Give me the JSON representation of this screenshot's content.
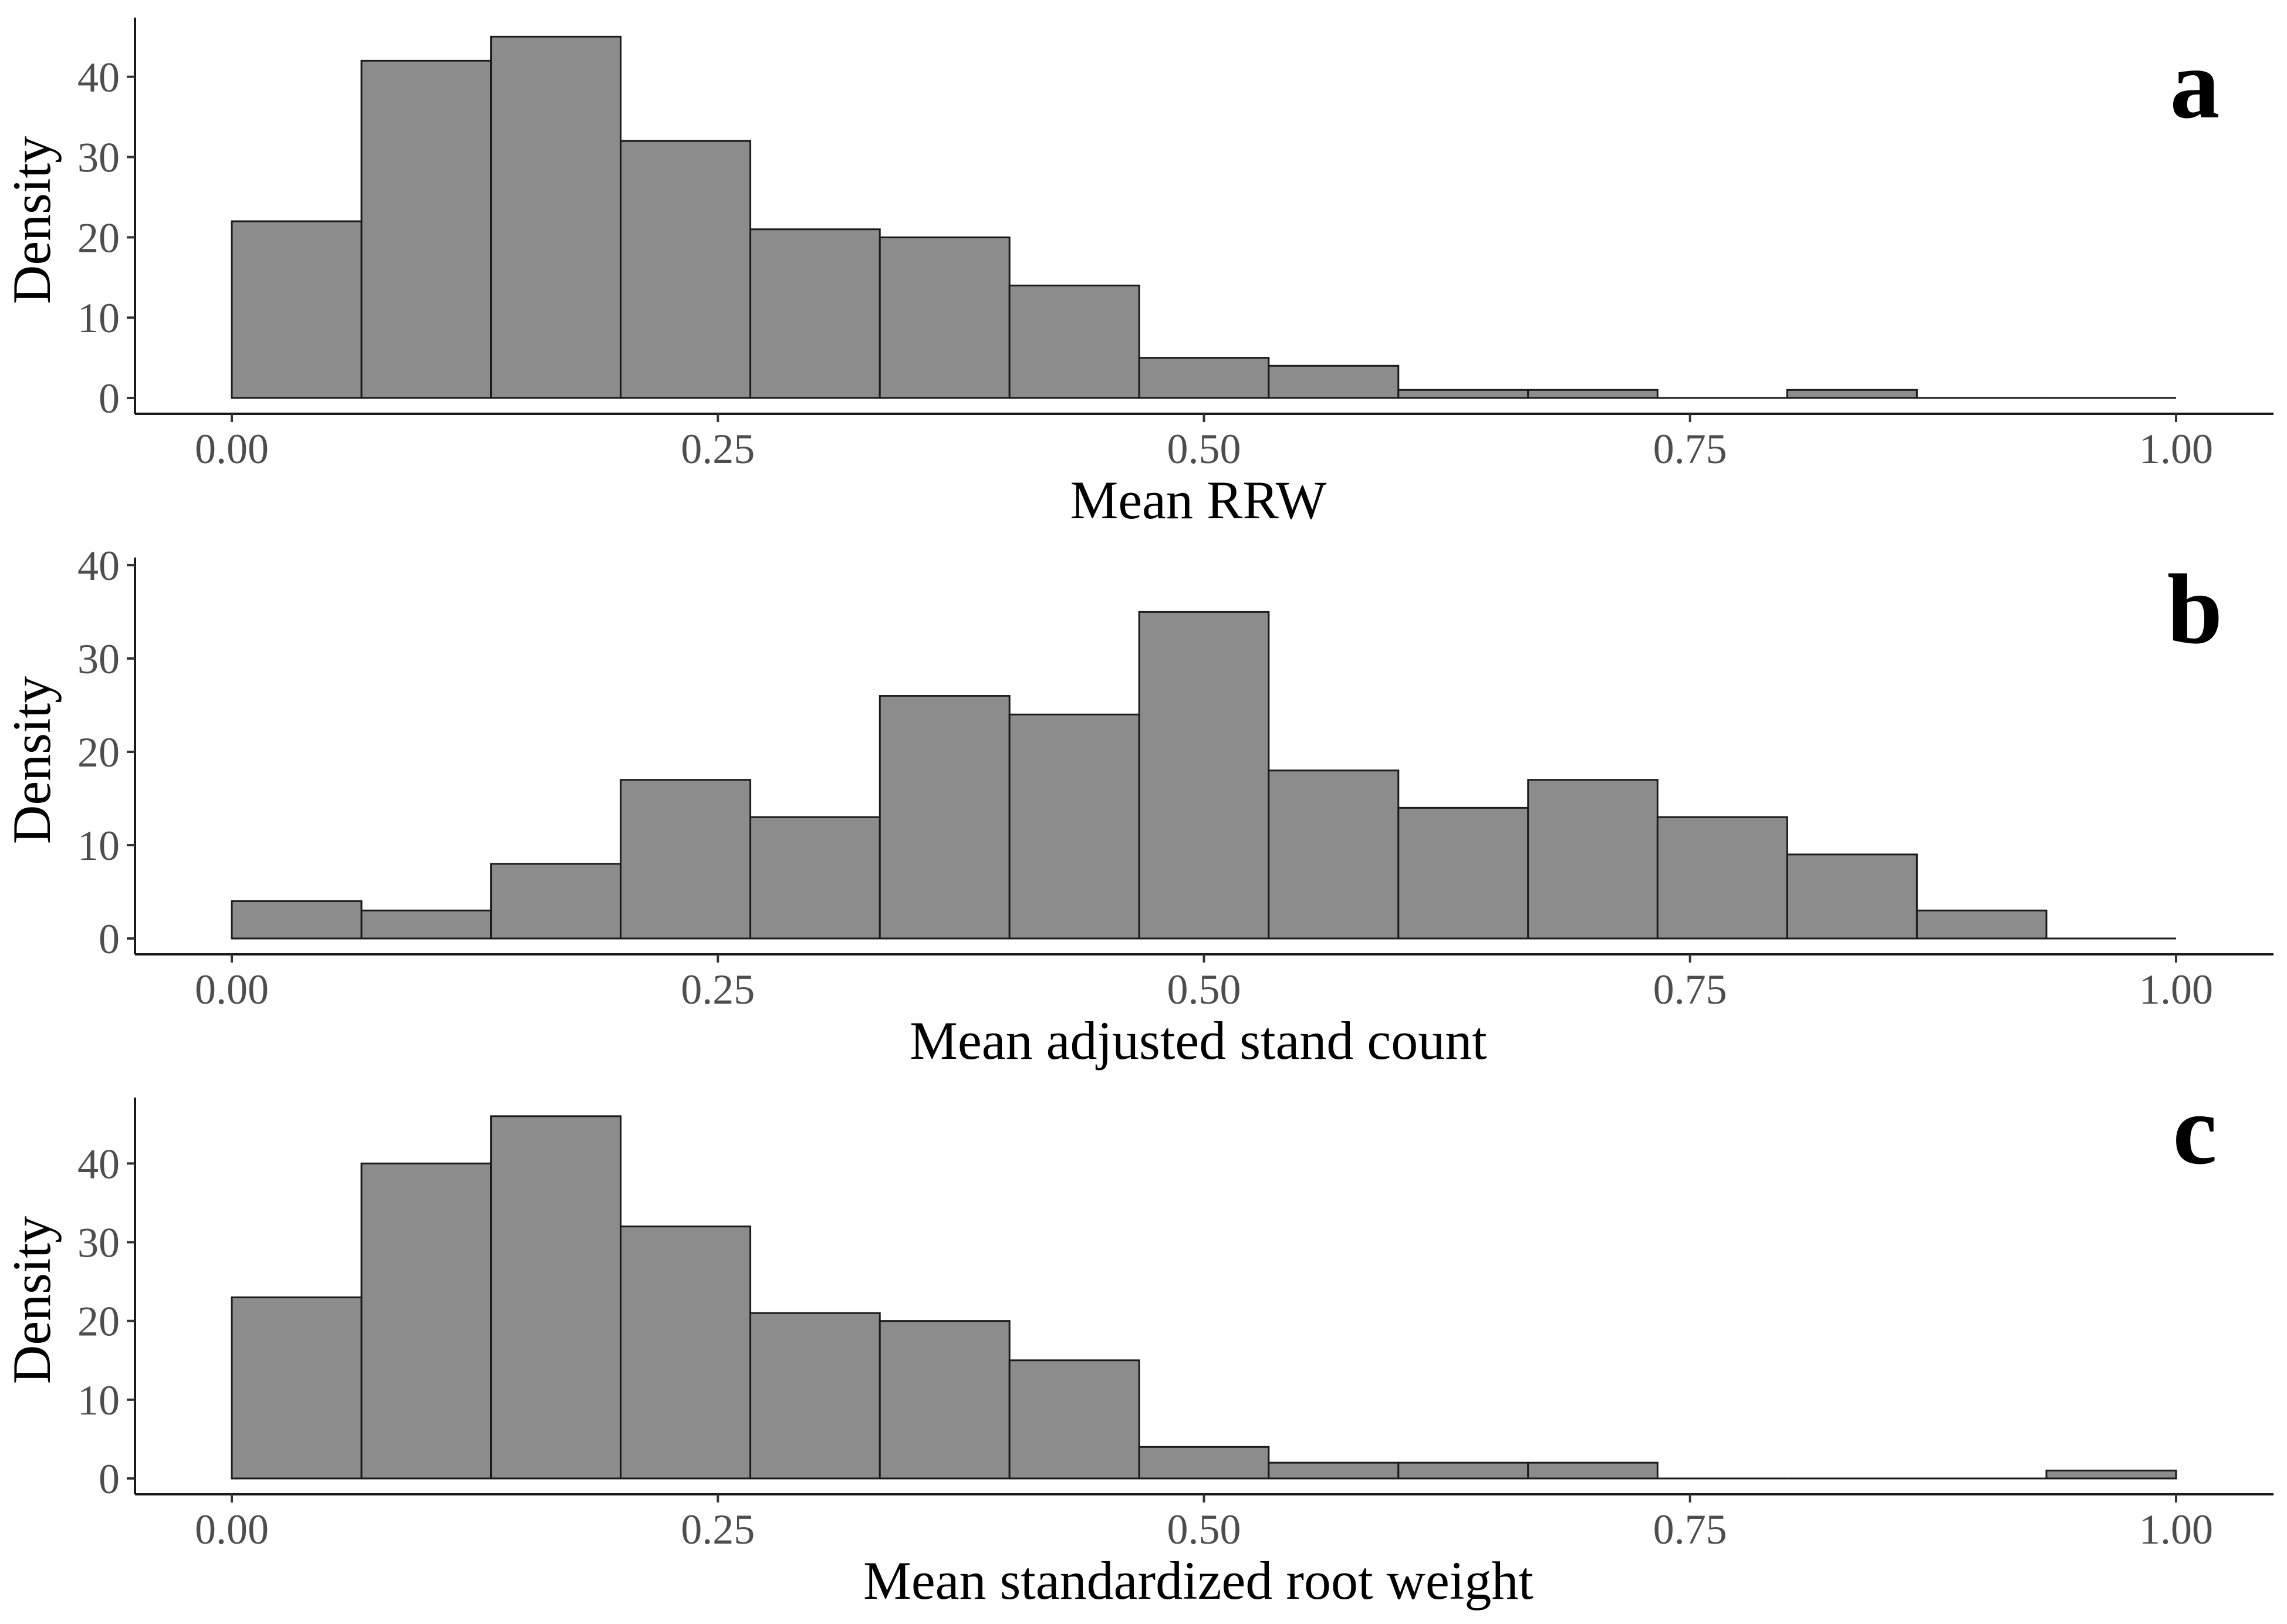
{
  "chart_data": [
    {
      "type": "bar",
      "panel_label": "a",
      "xlabel": "Mean RRW",
      "ylabel": "Density",
      "bin_edges": [
        0.0,
        0.0667,
        0.1333,
        0.2,
        0.2667,
        0.3333,
        0.4,
        0.4667,
        0.5333,
        0.6,
        0.6667,
        0.7333,
        0.8,
        0.8667,
        0.9333,
        1.0
      ],
      "values": [
        22,
        42,
        45,
        32,
        21,
        20,
        14,
        5,
        4,
        1,
        1,
        0,
        1,
        0,
        0
      ],
      "xlim": [
        0,
        1
      ],
      "ylim": [
        0,
        47
      ],
      "xticks": [
        0,
        0.25,
        0.5,
        0.75,
        1.0
      ],
      "xtick_labels": [
        "0.00",
        "0.25",
        "0.50",
        "0.75",
        "1.00"
      ],
      "yticks": [
        0,
        10,
        20,
        30,
        40
      ],
      "ytick_labels": [
        "0",
        "10",
        "20",
        "30",
        "40"
      ],
      "grid": false,
      "bar_color": "#8c8c8c",
      "bar_outline": "#1a1a1a"
    },
    {
      "type": "bar",
      "panel_label": "b",
      "xlabel": "Mean adjusted stand count",
      "ylabel": "Density",
      "bin_edges": [
        0.0,
        0.0667,
        0.1333,
        0.2,
        0.2667,
        0.3333,
        0.4,
        0.4667,
        0.5333,
        0.6,
        0.6667,
        0.7333,
        0.8,
        0.8667,
        0.9333,
        1.0
      ],
      "values": [
        4,
        3,
        8,
        17,
        13,
        26,
        24,
        35,
        18,
        14,
        17,
        13,
        9,
        3,
        0
      ],
      "xlim": [
        0,
        1
      ],
      "ylim": [
        0,
        40.5
      ],
      "xticks": [
        0,
        0.25,
        0.5,
        0.75,
        1.0
      ],
      "xtick_labels": [
        "0.00",
        "0.25",
        "0.50",
        "0.75",
        "1.00"
      ],
      "yticks": [
        0,
        10,
        20,
        30,
        40
      ],
      "ytick_labels": [
        "0",
        "10",
        "20",
        "30",
        "40"
      ],
      "grid": false,
      "bar_color": "#8c8c8c",
      "bar_outline": "#1a1a1a"
    },
    {
      "type": "bar",
      "panel_label": "c",
      "xlabel": "Mean standardized root weight",
      "ylabel": "Density",
      "bin_edges": [
        0.0,
        0.0667,
        0.1333,
        0.2,
        0.2667,
        0.3333,
        0.4,
        0.4667,
        0.5333,
        0.6,
        0.6667,
        0.7333,
        0.8,
        0.8667,
        0.9333,
        1.0
      ],
      "values": [
        23,
        40,
        46,
        32,
        21,
        20,
        15,
        4,
        2,
        2,
        2,
        0,
        0,
        0,
        1
      ],
      "xlim": [
        0,
        1
      ],
      "ylim": [
        0,
        48
      ],
      "xticks": [
        0,
        0.25,
        0.5,
        0.75,
        1.0
      ],
      "xtick_labels": [
        "0.00",
        "0.25",
        "0.50",
        "0.75",
        "1.00"
      ],
      "yticks": [
        0,
        10,
        20,
        30,
        40
      ],
      "ytick_labels": [
        "0",
        "10",
        "20",
        "30",
        "40"
      ],
      "grid": false,
      "bar_color": "#8c8c8c",
      "bar_outline": "#1a1a1a"
    }
  ]
}
